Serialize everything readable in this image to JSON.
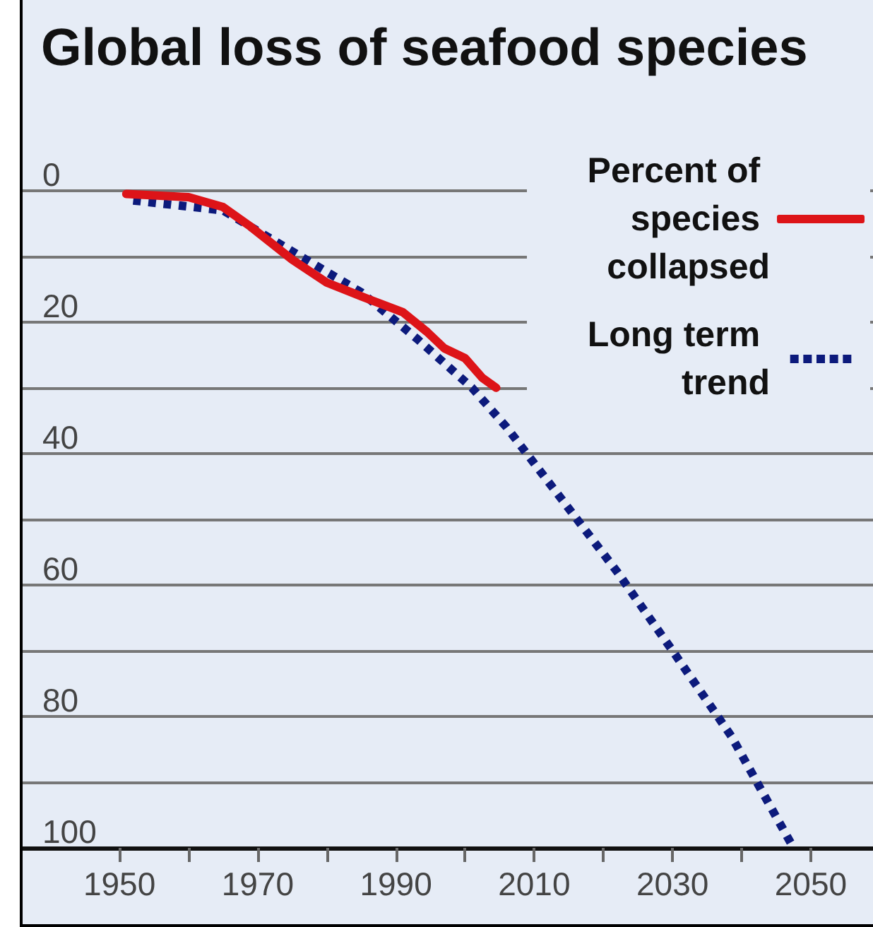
{
  "chart_data": {
    "type": "line",
    "title": "Global loss of seafood species",
    "series": [
      {
        "name": "Percent of species collapsed",
        "color": "#dd1418",
        "line_style": "solid",
        "x": [
          1951,
          1960,
          1965,
          1969,
          1975,
          1980,
          1986,
          1991,
          1994.5,
          1997,
          2000,
          2002.5,
          2004.5
        ],
        "values": [
          0.5,
          1,
          2.5,
          5.5,
          10.5,
          14,
          16.5,
          18.5,
          21.5,
          24,
          25.5,
          28.5,
          30
        ]
      },
      {
        "name": "Long term trend",
        "color": "#0c1a7c",
        "line_style": "dotted",
        "x": [
          1952,
          1965,
          1973,
          1985,
          1993,
          2001,
          2006,
          2014,
          2022,
          2030,
          2038.5,
          2047.5
        ],
        "values": [
          1.5,
          3,
          8,
          15.5,
          22.5,
          30,
          36,
          47,
          58,
          70,
          83,
          100
        ]
      }
    ],
    "xlim": [
      1936,
      2059
    ],
    "xticks": [
      1950,
      {
        "value": 1960,
        "label": null
      },
      1970,
      {
        "value": 1980,
        "label": null
      },
      1990,
      {
        "value": 2000,
        "label": null
      },
      2010,
      {
        "value": 2020,
        "label": null
      },
      2030,
      {
        "value": 2040,
        "label": null
      },
      2050
    ],
    "ylim": [
      100,
      -29
    ],
    "yticks": [
      0,
      {
        "value": 10,
        "label": null
      },
      20,
      {
        "value": 30,
        "label": null
      },
      40,
      {
        "value": 50,
        "label": null
      },
      60,
      {
        "value": 70,
        "label": null
      },
      80,
      {
        "value": 90,
        "label": null
      },
      100
    ],
    "grid": "y",
    "legend": "top right",
    "marker": "none"
  }
}
